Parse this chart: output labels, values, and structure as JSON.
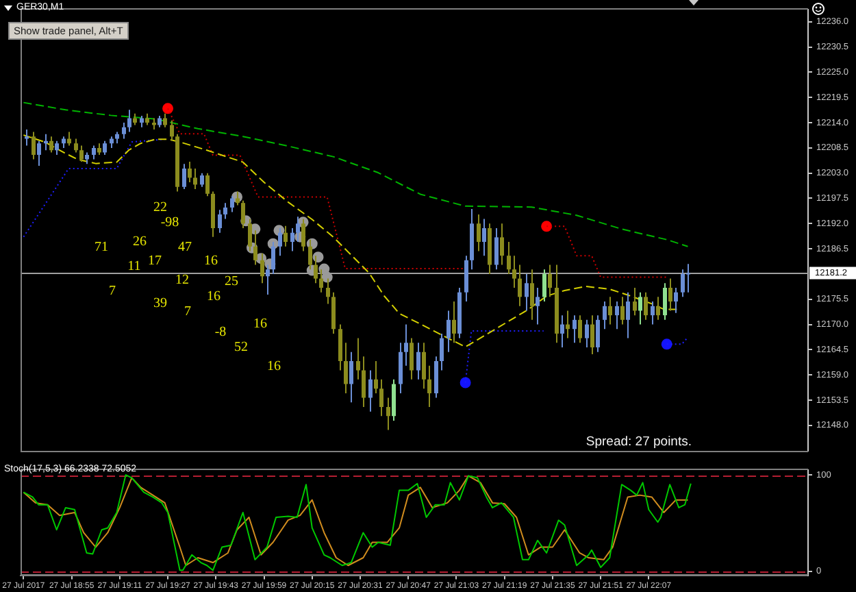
{
  "chart_data": [
    {
      "type": "candlestick",
      "title": "GER30,M1",
      "x": [
        "2017-07-27T18:40",
        "2017-07-27T18:42",
        "2017-07-27T18:44",
        "2017-07-27T18:46",
        "2017-07-27T18:48",
        "2017-07-27T18:50",
        "2017-07-27T18:52",
        "2017-07-27T18:54",
        "2017-07-27T18:56",
        "2017-07-27T18:58",
        "2017-07-27T19:00",
        "2017-07-27T19:02",
        "2017-07-27T19:04",
        "2017-07-27T19:06",
        "2017-07-27T19:08",
        "2017-07-27T19:10",
        "2017-07-27T19:12",
        "2017-07-27T19:14",
        "2017-07-27T19:16",
        "2017-07-27T19:18",
        "2017-07-27T19:20",
        "2017-07-27T19:22",
        "2017-07-27T19:24",
        "2017-07-27T19:26",
        "2017-07-27T19:28",
        "2017-07-27T19:30",
        "2017-07-27T19:32",
        "2017-07-27T19:34",
        "2017-07-27T19:36",
        "2017-07-27T19:38",
        "2017-07-27T19:40",
        "2017-07-27T19:42",
        "2017-07-27T19:44",
        "2017-07-27T19:46",
        "2017-07-27T19:48",
        "2017-07-27T19:50",
        "2017-07-27T19:52",
        "2017-07-27T19:54",
        "2017-07-27T19:56",
        "2017-07-27T19:58",
        "2017-07-27T20:00",
        "2017-07-27T20:02",
        "2017-07-27T20:04",
        "2017-07-27T20:06",
        "2017-07-27T20:08",
        "2017-07-27T20:10",
        "2017-07-27T20:12",
        "2017-07-27T20:14",
        "2017-07-27T20:16",
        "2017-07-27T20:18",
        "2017-07-27T20:20",
        "2017-07-27T20:22",
        "2017-07-27T20:24",
        "2017-07-27T20:26",
        "2017-07-27T20:28",
        "2017-07-27T20:30",
        "2017-07-27T20:32",
        "2017-07-27T20:34",
        "2017-07-27T20:36",
        "2017-07-27T20:38",
        "2017-07-27T20:40",
        "2017-07-27T20:42",
        "2017-07-27T20:44",
        "2017-07-27T20:46",
        "2017-07-27T20:48",
        "2017-07-27T20:50",
        "2017-07-27T20:52",
        "2017-07-27T20:54",
        "2017-07-27T20:56",
        "2017-07-27T20:58",
        "2017-07-27T21:00",
        "2017-07-27T21:02",
        "2017-07-27T21:04",
        "2017-07-27T21:06",
        "2017-07-27T21:08",
        "2017-07-27T21:10",
        "2017-07-27T21:12",
        "2017-07-27T21:14",
        "2017-07-27T21:16",
        "2017-07-27T21:18",
        "2017-07-27T21:20",
        "2017-07-27T21:22",
        "2017-07-27T21:24",
        "2017-07-27T21:26",
        "2017-07-27T21:28",
        "2017-07-27T21:30",
        "2017-07-27T21:32",
        "2017-07-27T21:34",
        "2017-07-27T21:36",
        "2017-07-27T21:38",
        "2017-07-27T21:40",
        "2017-07-27T21:42",
        "2017-07-27T21:44",
        "2017-07-27T21:46",
        "2017-07-27T21:48",
        "2017-07-27T21:50",
        "2017-07-27T21:52",
        "2017-07-27T21:54",
        "2017-07-27T21:56",
        "2017-07-27T21:58",
        "2017-07-27T22:00",
        "2017-07-27T22:02",
        "2017-07-27T22:04",
        "2017-07-27T22:06",
        "2017-07-27T22:08",
        "2017-07-27T22:10",
        "2017-07-27T22:12",
        "2017-07-27T22:14",
        "2017-07-27T22:16",
        "2017-07-27T22:18",
        "2017-07-27T22:20"
      ],
      "ohlc": [
        [
          12210.5,
          12212.5,
          12209,
          12211
        ],
        [
          12211,
          12212,
          12206,
          12207
        ],
        [
          12207,
          12210,
          12204.6,
          12209.5
        ],
        [
          12209.5,
          12211.5,
          12208,
          12210
        ],
        [
          12210,
          12211,
          12207.5,
          12208
        ],
        [
          12208,
          12210,
          12207,
          12209.5
        ],
        [
          12209.5,
          12211,
          12208.5,
          12210.5
        ],
        [
          12210.5,
          12212,
          12209,
          12209.5
        ],
        [
          12209.5,
          12210.5,
          12207.5,
          12208
        ],
        [
          12208,
          12209,
          12205.5,
          12206
        ],
        [
          12206,
          12207.5,
          12205,
          12207
        ],
        [
          12207,
          12209,
          12206,
          12208.5
        ],
        [
          12208.5,
          12209.5,
          12207,
          12207.5
        ],
        [
          12207.5,
          12210,
          12207,
          12209.5
        ],
        [
          12209.5,
          12211,
          12208.5,
          12210.5
        ],
        [
          12210.5,
          12212,
          12209.5,
          12211.5
        ],
        [
          12211.5,
          12214,
          12210.5,
          12213
        ],
        [
          12213,
          12216.8,
          12212,
          12215
        ],
        [
          12215,
          12216,
          12213.5,
          12214
        ],
        [
          12214,
          12215.5,
          12213,
          12215
        ],
        [
          12215,
          12216,
          12213.5,
          12214
        ],
        [
          12214,
          12215,
          12212.5,
          12213.5
        ],
        [
          12213.5,
          12215.5,
          12213,
          12215
        ],
        [
          12215,
          12216,
          12213,
          12213.5
        ],
        [
          12213.5,
          12214.5,
          12210,
          12211
        ],
        [
          12211,
          12211.5,
          12199,
          12200
        ],
        [
          12200,
          12205,
          12199.5,
          12204
        ],
        [
          12204,
          12205.5,
          12201,
          12202
        ],
        [
          12202,
          12204,
          12199.5,
          12200.5
        ],
        [
          12200.5,
          12203,
          12200,
          12202.5
        ],
        [
          12202.5,
          12203,
          12198,
          12198.5
        ],
        [
          12198.5,
          12199,
          12189.1,
          12191
        ],
        [
          12191,
          12195,
          12190,
          12194
        ],
        [
          12194,
          12196.5,
          12193,
          12195.5
        ],
        [
          12195.5,
          12198,
          12194.5,
          12197.5
        ],
        [
          12197.5,
          12199,
          12196,
          12196.5
        ],
        [
          12196.5,
          12197,
          12191,
          12192
        ],
        [
          12192,
          12193,
          12186,
          12187
        ],
        [
          12187,
          12190.5,
          12183,
          12184
        ],
        [
          12184,
          12185.5,
          12179,
          12180.5
        ],
        [
          12180.5,
          12183,
          12176.5,
          12182
        ],
        [
          12182,
          12188,
          12181,
          12187
        ],
        [
          12187,
          12191,
          12185,
          12190
        ],
        [
          12190,
          12191.5,
          12187,
          12188
        ],
        [
          12188,
          12191,
          12186,
          12190
        ],
        [
          12190,
          12193.5,
          12188,
          12192
        ],
        [
          12192,
          12193,
          12186,
          12187
        ],
        [
          12187,
          12188.5,
          12182,
          12183
        ],
        [
          12183,
          12185,
          12179,
          12180
        ],
        [
          12180,
          12182,
          12177,
          12178
        ],
        [
          12178,
          12180,
          12174.5,
          12176
        ],
        [
          12176,
          12177,
          12168,
          12169
        ],
        [
          12169,
          12170,
          12160,
          12162
        ],
        [
          12162,
          12166,
          12155,
          12157
        ],
        [
          12157,
          12164,
          12153,
          12162
        ],
        [
          12162,
          12167,
          12158,
          12160
        ],
        [
          12160,
          12163,
          12152,
          12154
        ],
        [
          12154,
          12160,
          12151,
          12158
        ],
        [
          12158,
          12162,
          12155,
          12156
        ],
        [
          12156,
          12158,
          12150,
          12152
        ],
        [
          12152,
          12154,
          12147,
          12150
        ],
        [
          12150,
          12158,
          12149,
          12157
        ],
        [
          12157,
          12166,
          12155,
          12164
        ],
        [
          12164,
          12170,
          12161,
          12166
        ],
        [
          12166,
          12167,
          12158,
          12160
        ],
        [
          12160,
          12166,
          12158,
          12164
        ],
        [
          12164,
          12166,
          12156,
          12158
        ],
        [
          12158,
          12161,
          12152,
          12155
        ],
        [
          12155,
          12163,
          12154,
          12162
        ],
        [
          12162,
          12168,
          12160,
          12167
        ],
        [
          12167,
          12173,
          12164,
          12171
        ],
        [
          12171,
          12175,
          12166,
          12168
        ],
        [
          12168,
          12178,
          12167,
          12177
        ],
        [
          12177,
          12185,
          12175,
          12184
        ],
        [
          12184,
          12195.2,
          12182,
          12192
        ],
        [
          12192,
          12194,
          12186,
          12188
        ],
        [
          12188,
          12193,
          12185,
          12191
        ],
        [
          12191,
          12192,
          12181,
          12183
        ],
        [
          12183,
          12191,
          12182,
          12189
        ],
        [
          12189,
          12192,
          12183,
          12185
        ],
        [
          12185,
          12188,
          12181,
          12182
        ],
        [
          12182,
          12185,
          12178,
          12180
        ],
        [
          12180,
          12183,
          12174,
          12176
        ],
        [
          12176,
          12181,
          12173,
          12179
        ],
        [
          12179,
          12182,
          12171,
          12174
        ],
        [
          12174,
          12178,
          12170,
          12176
        ],
        [
          12176,
          12182,
          12175,
          12181
        ],
        [
          12181,
          12183,
          12176,
          12178
        ],
        [
          12178,
          12183,
          12166,
          12168
        ],
        [
          12168,
          12172,
          12165,
          12170
        ],
        [
          12170,
          12173,
          12167,
          12169
        ],
        [
          12169,
          12172,
          12166,
          12171
        ],
        [
          12171,
          12172,
          12166,
          12167
        ],
        [
          12167,
          12171,
          12165,
          12170
        ],
        [
          12170,
          12172,
          12163.5,
          12165
        ],
        [
          12165,
          12172,
          12164,
          12171
        ],
        [
          12171,
          12175,
          12169,
          12174
        ],
        [
          12174,
          12176,
          12170,
          12172
        ],
        [
          12172,
          12175,
          12169,
          12174
        ],
        [
          12174,
          12176,
          12170,
          12171
        ],
        [
          12171,
          12177,
          12167,
          12175
        ],
        [
          12175,
          12178,
          12172,
          12173
        ],
        [
          12173,
          12177,
          12170,
          12176
        ],
        [
          12176,
          12177,
          12171,
          12172
        ],
        [
          12172,
          12175,
          12170,
          12174
        ],
        [
          12174,
          12176,
          12171,
          12172
        ],
        [
          12172,
          12179,
          12171,
          12178
        ],
        [
          12178,
          12180,
          12173,
          12175
        ],
        [
          12175,
          12178,
          12172.5,
          12177
        ],
        [
          12177,
          12182,
          12176,
          12181
        ],
        [
          12181,
          12183.2,
          12177,
          12181.2
        ]
      ],
      "colors": [
        "#6b8fd6",
        "#8c8c1e",
        "#6b8fd6",
        "#6b8fd6",
        "#8c8c1e",
        "#6b8fd6",
        "#6b8fd6",
        "#8c8c1e",
        "#8c8c1e",
        "#8c8c1e",
        "#6b8fd6",
        "#6b8fd6",
        "#8c8c1e",
        "#6b8fd6",
        "#6b8fd6",
        "#6b8fd6",
        "#6b8fd6",
        "#6b8fd6",
        "#8c8c1e",
        "#6b8fd6",
        "#8c8c1e",
        "#8c8c1e",
        "#6b8fd6",
        "#8c8c1e",
        "#8c8c1e",
        "#8c8c1e",
        "#6b8fd6",
        "#8c8c1e",
        "#8c8c1e",
        "#6b8fd6",
        "#8c8c1e",
        "#8c8c1e",
        "#6b8fd6",
        "#6b8fd6",
        "#6b8fd6",
        "#8c8c1e",
        "#8c8c1e",
        "#8c8c1e",
        "#8c8c1e",
        "#8c8c1e",
        "#6b8fd6",
        "#6b8fd6",
        "#6b8fd6",
        "#8c8c1e",
        "#6b8fd6",
        "#6b8fd6",
        "#8c8c1e",
        "#8c8c1e",
        "#8c8c1e",
        "#8c8c1e",
        "#8c8c1e",
        "#8c8c1e",
        "#8c8c1e",
        "#8c8c1e",
        "#6b8fd6",
        "#8c8c1e",
        "#8c8c1e",
        "#6b8fd6",
        "#8c8c1e",
        "#8c8c1e",
        "#8c8c1e",
        "#90e090",
        "#6b8fd6",
        "#6b8fd6",
        "#8c8c1e",
        "#6b8fd6",
        "#8c8c1e",
        "#8c8c1e",
        "#6b8fd6",
        "#6b8fd6",
        "#6b8fd6",
        "#8c8c1e",
        "#6b8fd6",
        "#6b8fd6",
        "#6b8fd6",
        "#8c8c1e",
        "#6b8fd6",
        "#8c8c1e",
        "#6b8fd6",
        "#8c8c1e",
        "#8c8c1e",
        "#8c8c1e",
        "#8c8c1e",
        "#6b8fd6",
        "#8c8c1e",
        "#6b8fd6",
        "#90e090",
        "#8c8c1e",
        "#8c8c1e",
        "#6b8fd6",
        "#8c8c1e",
        "#6b8fd6",
        "#8c8c1e",
        "#6b8fd6",
        "#8c8c1e",
        "#6b8fd6",
        "#6b8fd6",
        "#8c8c1e",
        "#6b8fd6",
        "#8c8c1e",
        "#6b8fd6",
        "#8c8c1e",
        "#90e090",
        "#8c8c1e",
        "#6b8fd6",
        "#8c8c1e",
        "#90e090",
        "#8c8c1e",
        "#6b8fd6",
        "#6b8fd6",
        "#6b8fd6"
      ],
      "series": [
        {
          "type": "line",
          "color": "#00b400",
          "line_style": "dashed",
          "x": [
            "2017-07-27T18:39",
            "2017-07-27T18:53",
            "2017-07-27T19:08",
            "2017-07-27T19:23",
            "2017-07-27T19:37",
            "2017-07-27T19:52",
            "2017-07-27T20:07",
            "2017-07-27T20:22",
            "2017-07-27T20:37",
            "2017-07-27T20:51",
            "2017-07-27T21:06",
            "2017-07-27T21:28",
            "2017-07-27T21:43",
            "2017-07-27T21:58",
            "2017-07-27T22:13",
            "2017-07-27T22:20"
          ],
          "values": [
            12218.4,
            12216.8,
            12215.6,
            12214.8,
            12212.7,
            12211.0,
            12208.9,
            12206.6,
            12203.1,
            12198.4,
            12195.8,
            12195.6,
            12193.8,
            12190.8,
            12188.5,
            12187.0
          ]
        },
        {
          "type": "line",
          "color": "#d4d000",
          "line_style": "dashed",
          "x": [
            "2017-07-27T18:39",
            "2017-07-27T18:46",
            "2017-07-27T18:53",
            "2017-07-27T18:57",
            "2017-07-27T19:03",
            "2017-07-27T19:10",
            "2017-07-27T19:14",
            "2017-07-27T19:18",
            "2017-07-27T19:23",
            "2017-07-27T19:27",
            "2017-07-27T19:31",
            "2017-07-27T19:40",
            "2017-07-27T19:52",
            "2017-07-27T19:59",
            "2017-07-27T20:07",
            "2017-07-27T20:15",
            "2017-07-27T20:22",
            "2017-07-27T20:34",
            "2017-07-27T20:39",
            "2017-07-27T20:44",
            "2017-07-27T20:51",
            "2017-07-27T20:59",
            "2017-07-27T21:06",
            "2017-07-27T21:15",
            "2017-07-27T21:27",
            "2017-07-27T21:33",
            "2017-07-27T21:39",
            "2017-07-27T21:46",
            "2017-07-27T21:54",
            "2017-07-27T22:01",
            "2017-07-27T22:08",
            "2017-07-27T22:12",
            "2017-07-27T22:17"
          ],
          "values": [
            12211.3,
            12209.8,
            12207.3,
            12206.0,
            12205.1,
            12205.4,
            12208.0,
            12209.5,
            12210.4,
            12210.4,
            12209.8,
            12208.0,
            12205.4,
            12201.0,
            12196.7,
            12192.9,
            12189.1,
            12181.2,
            12176.2,
            12172.4,
            12170.1,
            12167.4,
            12165.1,
            12168.6,
            12173.3,
            12176.2,
            12177.4,
            12178.3,
            12177.7,
            12176.2,
            12174.5,
            12173.3,
            12173.3
          ]
        },
        {
          "type": "line",
          "color": "#d00000",
          "line_style": "dotted",
          "x": [
            "2017-07-27T19:27",
            "2017-07-27T19:31",
            "2017-07-27T19:39",
            "2017-07-27T19:42",
            "2017-07-27T19:51",
            "2017-07-27T19:57",
            "2017-07-27T20:20",
            "2017-07-27T20:26",
            "2017-07-27T21:06",
            "2017-07-27T21:20",
            "2017-07-27T21:33",
            "2017-07-27T21:39",
            "2017-07-27T21:43",
            "2017-07-27T21:48",
            "2017-07-27T21:51",
            "2017-07-27T22:13"
          ],
          "values": [
            12217.1,
            12211.6,
            12211.6,
            12206.9,
            12206.9,
            12197.8,
            12197.8,
            12182.2,
            12182.2,
            null,
            12191.4,
            12191.4,
            12185.0,
            12185.0,
            12180.3,
            12180.3
          ]
        },
        {
          "type": "line",
          "color": "#1e1eff",
          "line_style": "dotted",
          "x": [
            "2017-07-27T18:39",
            "2017-07-27T18:54",
            "2017-07-27T19:10",
            "2017-07-27T19:15",
            "2017-07-27T19:26",
            "2017-07-27T19:45",
            "2017-07-27T21:06",
            "2017-07-27T21:08",
            "2017-07-27T21:32",
            "2017-07-27T21:50",
            "2017-07-27T22:13",
            "2017-07-27T22:18",
            "2017-07-27T22:20"
          ],
          "values": [
            12189.1,
            12204.0,
            12204.0,
            12209.8,
            12210.4,
            null,
            12157.3,
            12168.6,
            12168.6,
            null,
            12165.7,
            12165.7,
            12167.2
          ]
        },
        {
          "type": "scatter",
          "color": "#ff0000",
          "marker": "circle",
          "x": [
            "2017-07-27T19:27",
            "2017-07-27T21:33"
          ],
          "values": [
            12217.1,
            12191.4
          ]
        },
        {
          "type": "scatter",
          "color": "#1414ff",
          "marker": "circle",
          "x": [
            "2017-07-27T21:06",
            "2017-07-27T22:13"
          ],
          "values": [
            12157.3,
            12165.7
          ]
        },
        {
          "type": "scatter",
          "color": "#9a9a9a",
          "marker": "circle",
          "x": [
            "2017-07-27T19:50",
            "2017-07-27T19:53",
            "2017-07-27T19:56",
            "2017-07-27T19:55",
            "2017-07-27T19:58",
            "2017-07-27T20:01",
            "2017-07-27T20:04",
            "2017-07-27T20:02",
            "2017-07-27T20:12",
            "2017-07-27T20:11",
            "2017-07-27T20:15",
            "2017-07-27T20:17",
            "2017-07-27T20:15",
            "2017-07-27T20:19",
            "2017-07-27T20:20"
          ],
          "values": [
            12197.8,
            12192.6,
            12190.8,
            12186.7,
            12184.4,
            12183.2,
            12190.5,
            12187.6,
            12192.3,
            12189.1,
            12187.6,
            12184.7,
            12181.8,
            12182.1,
            12180.3
          ]
        }
      ],
      "xlim": [
        "2017-07-27T18:38",
        "2017-07-27T23:00"
      ],
      "ylim": [
        12142.4,
        12238.7
      ],
      "yticks": [
        {
          "value": 12236,
          "label": "12236.0"
        },
        12230.5,
        {
          "value": 12225,
          "label": "12225.0"
        },
        12219.5,
        {
          "value": 12214,
          "label": "12214.0"
        },
        12208.5,
        {
          "value": 12203,
          "label": "12203.0"
        },
        12197.5,
        {
          "value": 12192,
          "label": "12192.0"
        },
        12186.5,
        12175.5,
        {
          "value": 12170,
          "label": "12170.0"
        },
        12164.5,
        {
          "value": 12159,
          "label": "12159.0"
        },
        12153.5,
        {
          "value": 12148,
          "label": "12148.0"
        }
      ],
      "tick_labels": "y",
      "ref_lines": [
        {
          "axis": "y",
          "value": 12181.2,
          "label": "12181.2",
          "color": "#a0a0a0"
        }
      ],
      "annotations": [
        "Show trade panel, Alt+T",
        "22",
        "-98",
        "71",
        "26",
        "47",
        "17",
        "16",
        "11",
        "12",
        "25",
        "7",
        "39",
        "16",
        "7",
        "16",
        "-8",
        "52",
        "16",
        "Spread: 27 points."
      ]
    },
    {
      "type": "line",
      "title": "Stoch(17,5,3) 66.2338 72.5052",
      "series": [
        {
          "color": "#00c800",
          "x": [
            "2017-07-27T18:39",
            "2017-07-27T18:42",
            "2017-07-27T18:44",
            "2017-07-27T18:47",
            "2017-07-27T18:50",
            "2017-07-27T18:53",
            "2017-07-27T18:56",
            "2017-07-27T19:00",
            "2017-07-27T19:02",
            "2017-07-27T19:05",
            "2017-07-27T19:07",
            "2017-07-27T19:10",
            "2017-07-27T19:13",
            "2017-07-27T19:15",
            "2017-07-27T19:19",
            "2017-07-27T19:22",
            "2017-07-27T19:25",
            "2017-07-27T19:27",
            "2017-07-27T19:31",
            "2017-07-27T19:32",
            "2017-07-27T19:35",
            "2017-07-27T19:38",
            "2017-07-27T19:40",
            "2017-07-27T19:42",
            "2017-07-27T19:45",
            "2017-07-27T19:48",
            "2017-07-27T19:52",
            "2017-07-27T19:56",
            "2017-07-27T20:00",
            "2017-07-27T20:03",
            "2017-07-27T20:07",
            "2017-07-27T20:10",
            "2017-07-27T20:13",
            "2017-07-27T20:15",
            "2017-07-27T20:19",
            "2017-07-27T20:21",
            "2017-07-27T20:25",
            "2017-07-27T20:28",
            "2017-07-27T20:32",
            "2017-07-27T20:35",
            "2017-07-27T20:37",
            "2017-07-27T20:41",
            "2017-07-27T20:44",
            "2017-07-27T20:47",
            "2017-07-27T20:50",
            "2017-07-27T20:53",
            "2017-07-27T20:56",
            "2017-07-27T20:59",
            "2017-07-27T21:01",
            "2017-07-27T21:04",
            "2017-07-27T21:07",
            "2017-07-27T21:10",
            "2017-07-27T21:13",
            "2017-07-27T21:15",
            "2017-07-27T21:18",
            "2017-07-27T21:22",
            "2017-07-27T21:25",
            "2017-07-27T21:27",
            "2017-07-27T21:30",
            "2017-07-27T21:33",
            "2017-07-27T21:37",
            "2017-07-27T21:39",
            "2017-07-27T21:43",
            "2017-07-27T21:47",
            "2017-07-27T21:48",
            "2017-07-27T21:51",
            "2017-07-27T21:54",
            "2017-07-27T21:58",
            "2017-07-27T22:01",
            "2017-07-27T22:03",
            "2017-07-27T22:05",
            "2017-07-27T22:07",
            "2017-07-27T22:10",
            "2017-07-27T22:11",
            "2017-07-27T22:14",
            "2017-07-27T22:17",
            "2017-07-27T22:19",
            "2017-07-27T22:21"
          ],
          "values": [
            82,
            77,
            69,
            69,
            43,
            66,
            64,
            19,
            18,
            43,
            45,
            61,
            100,
            97,
            82,
            77,
            71,
            61,
            1,
            1,
            17,
            9,
            6,
            1,
            25,
            27,
            61,
            12,
            25,
            56,
            57,
            56,
            90,
            45,
            17,
            14,
            6,
            9,
            40,
            25,
            30,
            27,
            84,
            84,
            91,
            56,
            69,
            69,
            92,
            74,
            99,
            97,
            77,
            66,
            71,
            56,
            12,
            12,
            32,
            19,
            53,
            48,
            6,
            17,
            22,
            4,
            14,
            90,
            84,
            79,
            92,
            64,
            51,
            56,
            90,
            66,
            69,
            91
          ]
        },
        {
          "color": "#d08c1e",
          "x": [
            "2017-07-27T18:39",
            "2017-07-27T18:43",
            "2017-07-27T18:47",
            "2017-07-27T18:51",
            "2017-07-27T18:56",
            "2017-07-27T18:59",
            "2017-07-27T19:03",
            "2017-07-27T19:07",
            "2017-07-27T19:11",
            "2017-07-27T19:15",
            "2017-07-27T19:18",
            "2017-07-27T19:23",
            "2017-07-27T19:26",
            "2017-07-27T19:31",
            "2017-07-27T19:33",
            "2017-07-27T19:37",
            "2017-07-27T19:42",
            "2017-07-27T19:47",
            "2017-07-27T19:50",
            "2017-07-27T19:54",
            "2017-07-27T19:58",
            "2017-07-27T20:02",
            "2017-07-27T20:07",
            "2017-07-27T20:11",
            "2017-07-27T20:15",
            "2017-07-27T20:19",
            "2017-07-27T20:23",
            "2017-07-27T20:27",
            "2017-07-27T20:32",
            "2017-07-27T20:35",
            "2017-07-27T20:40",
            "2017-07-27T20:44",
            "2017-07-27T20:47",
            "2017-07-27T20:51",
            "2017-07-27T20:55",
            "2017-07-27T21:00",
            "2017-07-27T21:04",
            "2017-07-27T21:07",
            "2017-07-27T21:11",
            "2017-07-27T21:15",
            "2017-07-27T21:19",
            "2017-07-27T21:23",
            "2017-07-27T21:27",
            "2017-07-27T21:31",
            "2017-07-27T21:35",
            "2017-07-27T21:39",
            "2017-07-27T21:44",
            "2017-07-27T21:47",
            "2017-07-27T21:52",
            "2017-07-27T21:55",
            "2017-07-27T22:00",
            "2017-07-27T22:04",
            "2017-07-27T22:08",
            "2017-07-27T22:12",
            "2017-07-27T22:16",
            "2017-07-27T22:20"
          ],
          "values": [
            82,
            71,
            69,
            58,
            61,
            40,
            25,
            40,
            66,
            97,
            87,
            77,
            71,
            25,
            6,
            14,
            9,
            19,
            43,
            56,
            17,
            30,
            53,
            58,
            74,
            40,
            14,
            6,
            14,
            30,
            30,
            45,
            79,
            87,
            66,
            71,
            84,
            99,
            92,
            71,
            70,
            56,
            17,
            25,
            25,
            43,
            19,
            14,
            12,
            25,
            77,
            79,
            77,
            61,
            74,
            74
          ]
        }
      ],
      "xlim": [
        "2017-07-27T18:38",
        "2017-07-27T23:00"
      ],
      "xticks": [
        {
          "value": "2017-07-27T18:39",
          "label": "27 Jul 2017"
        },
        {
          "value": "2017-07-27T18:55",
          "label": "27 Jul 18:55"
        },
        {
          "value": "2017-07-27T19:11",
          "label": "27 Jul 19:11"
        },
        {
          "value": "2017-07-27T19:27",
          "label": "27 Jul 19:27"
        },
        {
          "value": "2017-07-27T19:43",
          "label": "27 Jul 19:43"
        },
        {
          "value": "2017-07-27T19:59",
          "label": "27 Jul 19:59"
        },
        {
          "value": "2017-07-27T20:15",
          "label": "27 Jul 20:15"
        },
        {
          "value": "2017-07-27T20:31",
          "label": "27 Jul 20:31"
        },
        {
          "value": "2017-07-27T20:47",
          "label": "27 Jul 20:47"
        },
        {
          "value": "2017-07-27T21:03",
          "label": "27 Jul 21:03"
        },
        {
          "value": "2017-07-27T21:19",
          "label": "27 Jul 21:19"
        },
        {
          "value": "2017-07-27T21:35",
          "label": "27 Jul 21:35"
        },
        {
          "value": "2017-07-27T21:51",
          "label": "27 Jul 21:51"
        },
        {
          "value": "2017-07-27T22:07",
          "label": "27 Jul 22:07"
        }
      ],
      "ylim": [
        -4.2,
        105.2
      ],
      "yticks": [
        0,
        100
      ],
      "ref_lines": [
        {
          "axis": "y",
          "value": 100,
          "color": "#b41e32",
          "line_style": "dashed"
        },
        {
          "axis": "y",
          "value": 0,
          "color": "#b41e32",
          "line_style": "dashed"
        }
      ]
    }
  ]
}
